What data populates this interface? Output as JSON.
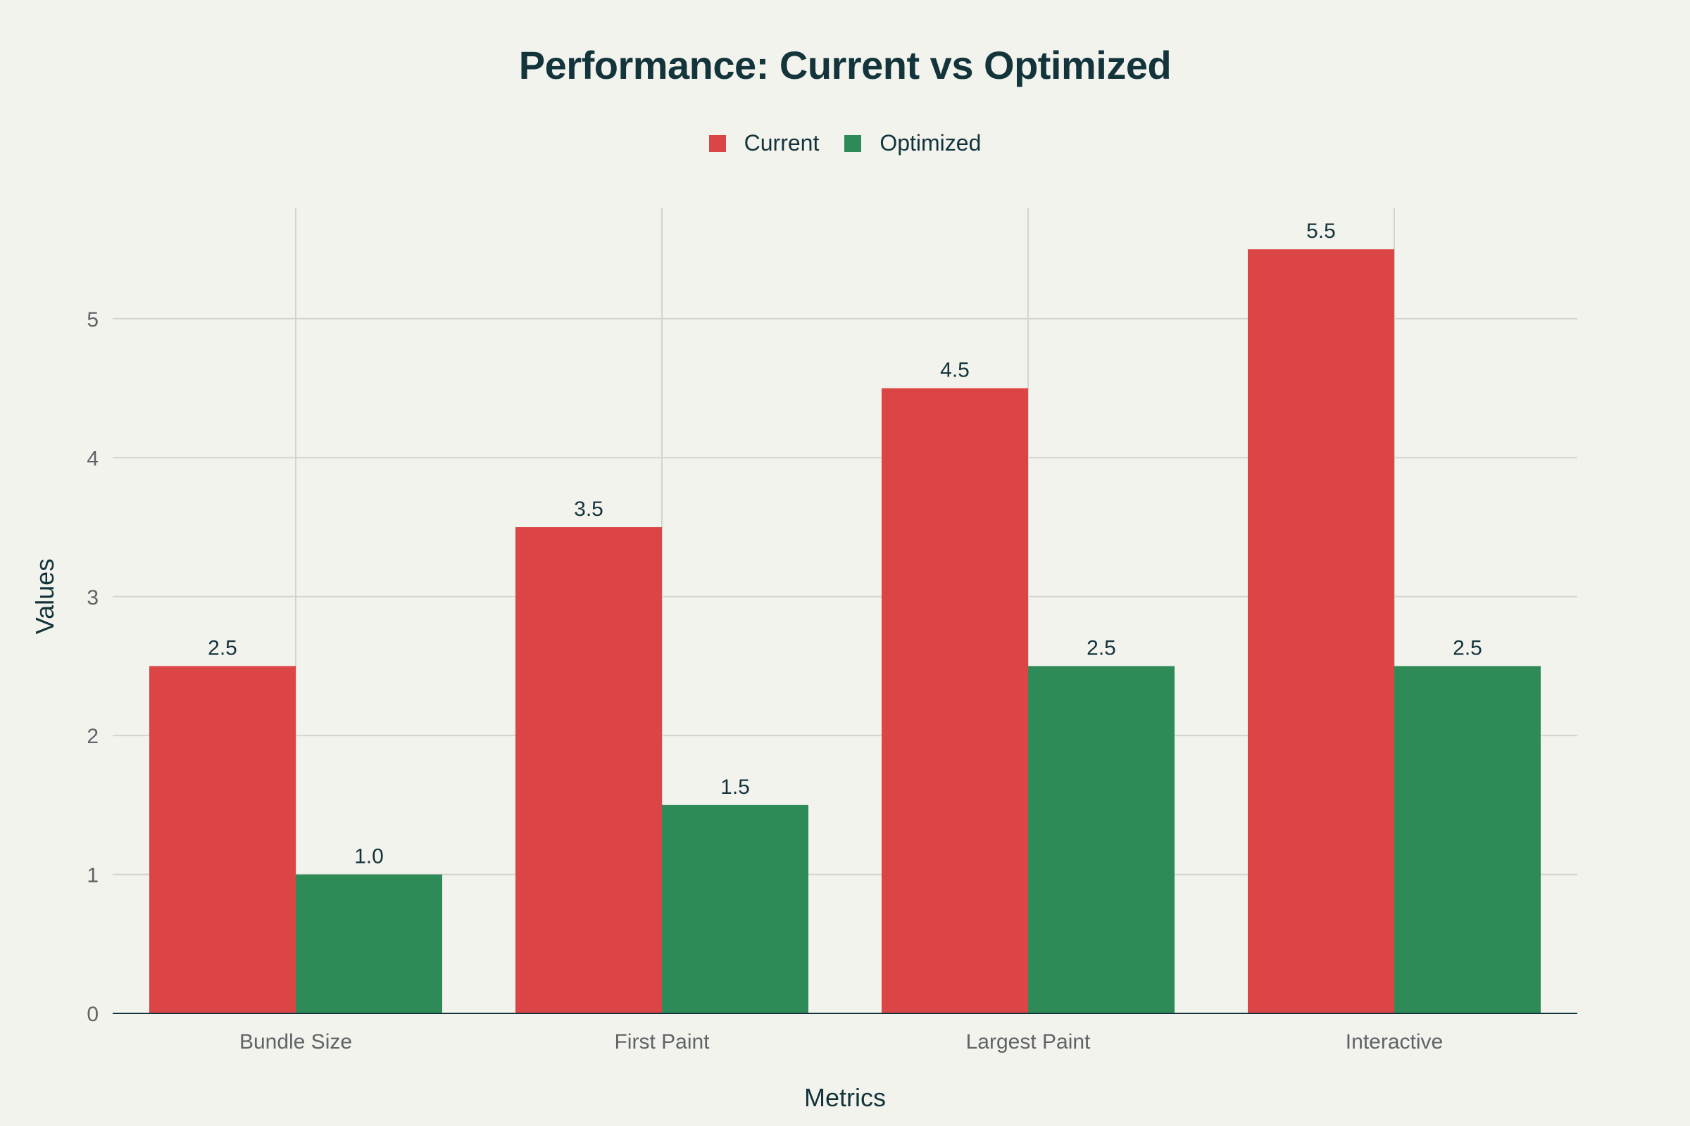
{
  "chart_data": {
    "type": "bar",
    "title": "Performance: Current vs Optimized",
    "xlabel": "Metrics",
    "ylabel": "Values",
    "categories": [
      "Bundle Size",
      "First Paint",
      "Largest Paint",
      "Interactive"
    ],
    "series": [
      {
        "name": "Current",
        "color": "#db4545",
        "values": [
          2.5,
          3.5,
          4.5,
          5.5
        ],
        "labels": [
          "2.5",
          "3.5",
          "4.5",
          "5.5"
        ]
      },
      {
        "name": "Optimized",
        "color": "#2e8b57",
        "values": [
          1.0,
          1.5,
          2.5,
          2.5
        ],
        "labels": [
          "1.0",
          "1.5",
          "2.5",
          "2.5"
        ]
      }
    ],
    "ylim": [
      0,
      5.8
    ],
    "yticks": [
      0,
      1,
      2,
      3,
      4,
      5
    ],
    "grid": true,
    "legend_position": "top-center"
  }
}
